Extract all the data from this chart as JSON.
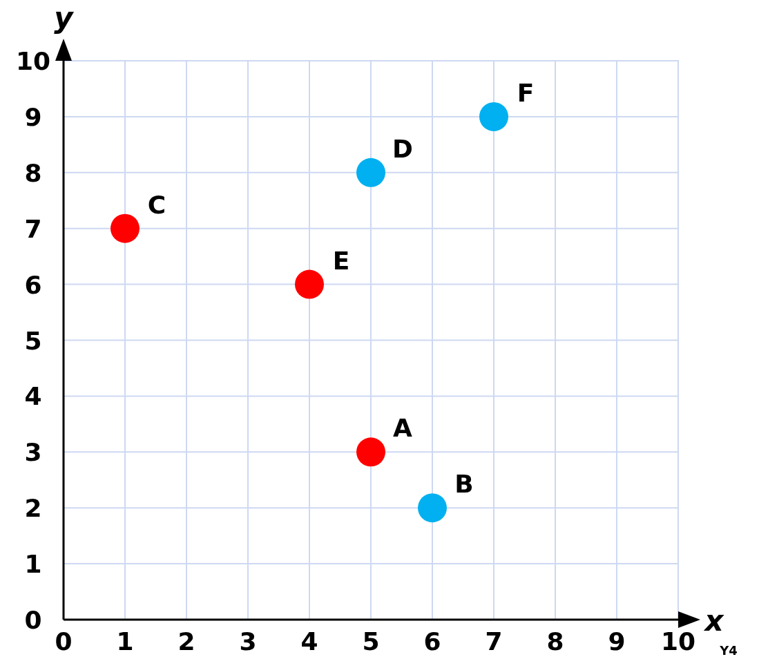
{
  "chart_data": {
    "type": "scatter",
    "xlabel": "x",
    "ylabel": "y",
    "xlim": [
      0,
      10
    ],
    "ylim": [
      0,
      10
    ],
    "xticks": [
      0,
      1,
      2,
      3,
      4,
      5,
      6,
      7,
      8,
      9,
      10
    ],
    "yticks": [
      0,
      1,
      2,
      3,
      4,
      5,
      6,
      7,
      8,
      9,
      10
    ],
    "grid": true,
    "marker": "circle",
    "series": [
      {
        "color": "#ff0000",
        "x": [
          5,
          1,
          4
        ],
        "values": [
          3,
          7,
          6
        ]
      },
      {
        "color": "#00b0f0",
        "x": [
          6,
          5,
          7
        ],
        "values": [
          2,
          8,
          9
        ]
      }
    ],
    "annotations": [
      {
        "text": "A",
        "x": 5,
        "y": 3
      },
      {
        "text": "B",
        "x": 6,
        "y": 2
      },
      {
        "text": "C",
        "x": 1,
        "y": 7
      },
      {
        "text": "D",
        "x": 5,
        "y": 8
      },
      {
        "text": "E",
        "x": 4,
        "y": 6
      },
      {
        "text": "F",
        "x": 7,
        "y": 9
      },
      "Y4"
    ]
  }
}
